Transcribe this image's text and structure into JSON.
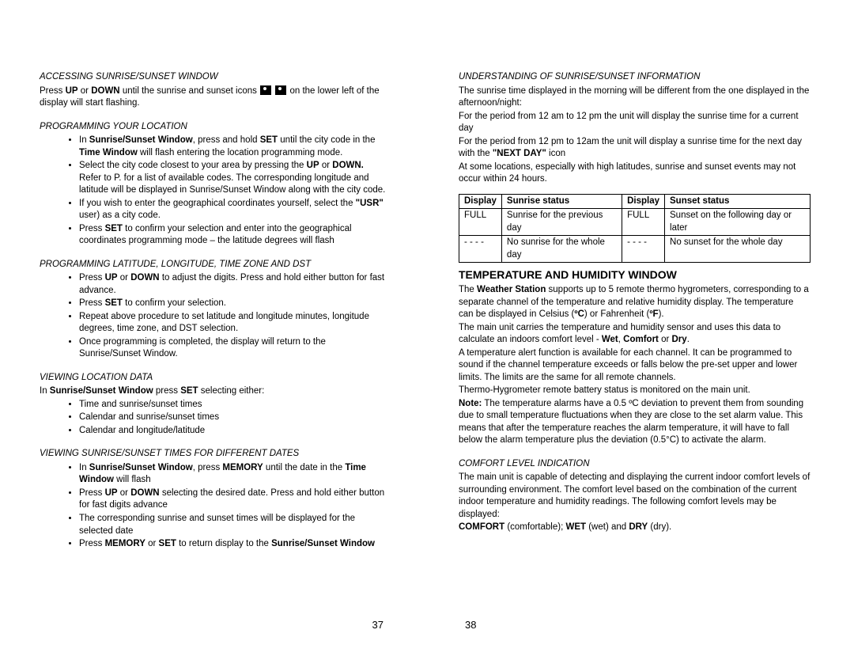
{
  "left": {
    "s1": {
      "heading": "ACCESSING SUNRISE/SUNSET WINDOW",
      "line1a": "Press ",
      "line1b": "UP",
      "line1c": " or ",
      "line1d": "DOWN",
      "line1e": " until the sunrise and sunset icons ",
      "line1f": " on the lower left of the display will start flashing."
    },
    "s2": {
      "heading": "PROGRAMMING YOUR LOCATION",
      "b1a": "In ",
      "b1b": "Sunrise/Sunset Window",
      "b1c": ", press and hold ",
      "b1d": "SET",
      "b1e": " until the city code in the ",
      "b1f": "Time Window",
      "b1g": " will flash entering the location programming mode.",
      "b2a": "Select the city code closest to your area by pressing the ",
      "b2b": "UP",
      "b2c": " or ",
      "b2d": "DOWN.",
      "b2e": " Refer to P. for a list of available codes. The corresponding longitude and latitude will be displayed in Sunrise/Sunset Window along with the city code.",
      "b3a": "If you wish to enter the geographical coordinates yourself, select the ",
      "b3b": "\"USR\"",
      "b3c": " user) as a city code.",
      "b4a": "Press ",
      "b4b": "SET",
      "b4c": " to confirm your selection and enter into the geographical coordinates programming mode – the latitude degrees will flash"
    },
    "s3": {
      "heading": "PROGRAMMING LATITUDE, LONGITUDE, TIME ZONE AND DST",
      "b1a": "Press ",
      "b1b": "UP",
      "b1c": " or ",
      "b1d": "DOWN",
      "b1e": " to adjust the digits. Press and hold either button for fast advance.",
      "b2a": "Press ",
      "b2b": "SET",
      "b2c": " to confirm your selection.",
      "b3": "Repeat above procedure to set latitude and longitude minutes, longitude degrees, time zone, and DST selection.",
      "b4": "Once programming is completed, the display will return to the Sunrise/Sunset Window."
    },
    "s4": {
      "heading": "VIEWING LOCATION DATA",
      "introA": "In ",
      "introB": "Sunrise/Sunset Window",
      "introC": " press ",
      "introD": "SET",
      "introE": " selecting either:",
      "b1": "Time and sunrise/sunset times",
      "b2": "Calendar and sunrise/sunset times",
      "b3": "Calendar and longitude/latitude"
    },
    "s5": {
      "heading": "VIEWING SUNRISE/SUNSET TIMES FOR DIFFERENT DATES",
      "b1a": "In ",
      "b1b": "Sunrise/Sunset Window",
      "b1c": ", press ",
      "b1d": "MEMORY",
      "b1e": " until the date in the ",
      "b1f": "Time Window",
      "b1g": " will flash",
      "b2a": "Press ",
      "b2b": "UP",
      "b2c": " or ",
      "b2d": "DOWN",
      "b2e": " selecting the desired date. Press and hold either button for fast digits advance",
      "b3": "The corresponding sunrise and sunset times will be displayed for the selected date",
      "b4a": "Press ",
      "b4b": "MEMORY",
      "b4c": " or ",
      "b4d": "SET",
      "b4e": " to return display to the ",
      "b4f": "Sunrise/Sunset Window"
    },
    "pageNum": "37"
  },
  "right": {
    "s1": {
      "heading": "UNDERSTANDING OF SUNRISE/SUNSET INFORMATION",
      "p1": "The sunrise time displayed in the morning will be different from the one displayed in the afternoon/night:",
      "p2": "For the period from 12 am to 12 pm the unit will display the sunrise time for a current day",
      "p3a": "For the period from 12 pm to 12am the unit will display a sunrise time for the next day with the ",
      "p3b": "\"NEXT DAY\"",
      "p3c": " icon",
      "p4": "At some locations, especially with high latitudes, sunrise and sunset events may not occur within 24 hours."
    },
    "table": {
      "h1": "Display",
      "h2": "Sunrise status",
      "h3": "Display",
      "h4": "Sunset status",
      "r1c1": "FULL",
      "r1c2": "Sunrise for the previous day",
      "r1c3": "FULL",
      "r1c4": "Sunset on the following day or later",
      "r2c1": "- - - -",
      "r2c2": "No sunrise for the whole day",
      "r2c3": "- - - -",
      "r2c4": "No sunset for the whole day"
    },
    "s2": {
      "heading": "TEMPERATURE AND HUMIDITY WINDOW",
      "p1a": "The ",
      "p1b": "Weather Station",
      "p1c": " supports up to 5 remote thermo hygrometers, corresponding to a separate channel of the temperature and relative humidity display. The temperature can be displayed in Celsius (",
      "p1d": "ºC",
      "p1e": ") or Fahrenheit (",
      "p1f": "ºF",
      "p1g": ").",
      "p2a": "The main unit carries the temperature and humidity sensor and uses this data to calculate an indoors comfort level - ",
      "p2b": "Wet",
      "p2c": ", ",
      "p2d": "Comfort",
      "p2e": " or ",
      "p2f": "Dry",
      "p2g": ".",
      "p3": "A temperature alert function is available for each channel. It can be programmed to sound if the channel temperature exceeds or falls below the pre-set upper and lower limits. The limits are the same for all remote channels.",
      "p4": "Thermo-Hygrometer remote battery status is monitored on the main unit.",
      "p5a": "Note:",
      "p5b": " The temperature alarms have a 0.5 ºC deviation to prevent them from sounding due to small temperature fluctuations when they are close to the set alarm value. This means that after the temperature reaches the alarm temperature, it will have to fall below the alarm temperature plus the deviation (0.5°C) to activate the alarm."
    },
    "s3": {
      "heading": "COMFORT LEVEL INDICATION",
      "p1": "The main unit is capable of detecting and displaying the current indoor comfort levels of surrounding environment. The comfort level based on the combination of the current indoor temperature and humidity readings. The following comfort levels may be displayed:",
      "p2a": "COMFORT",
      "p2b": " (comfortable); ",
      "p2c": "WET",
      "p2d": " (wet) and ",
      "p2e": "DRY",
      "p2f": " (dry)."
    },
    "pageNum": "38"
  }
}
